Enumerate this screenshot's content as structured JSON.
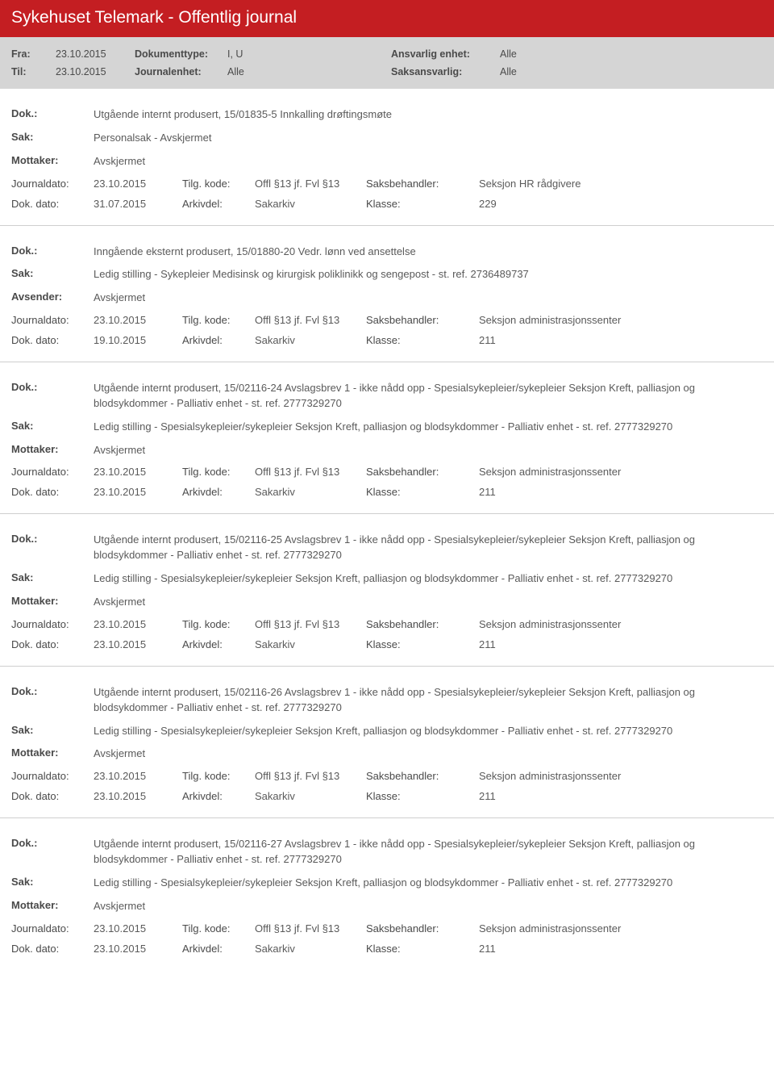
{
  "header": {
    "title": "Sykehuset Telemark - Offentlig journal"
  },
  "filter": {
    "row1": {
      "l1": "Fra:",
      "v1": "23.10.2015",
      "l2": "Dokumenttype:",
      "v2": "I, U",
      "l3": "Ansvarlig enhet:",
      "v3": "Alle"
    },
    "row2": {
      "l1": "Til:",
      "v1": "23.10.2015",
      "l2": "Journalenhet:",
      "v2": "Alle",
      "l3": "Saksansvarlig:",
      "v3": "Alle"
    }
  },
  "labels": {
    "dok": "Dok.:",
    "sak": "Sak:",
    "mottaker": "Mottaker:",
    "avsender": "Avsender:",
    "journaldato": "Journaldato:",
    "dokdato": "Dok. dato:",
    "tilgkode": "Tilg. kode:",
    "arkivdel": "Arkivdel:",
    "saksbehandler": "Saksbehandler:",
    "klasse": "Klasse:"
  },
  "entries": [
    {
      "dok": "Utgående internt produsert, 15/01835-5 Innkalling drøftingsmøte",
      "sak": "Personalsak - Avskjermet",
      "partyLabel": "Mottaker:",
      "party": "Avskjermet",
      "journaldato": "23.10.2015",
      "tilgkode": "Offl §13 jf. Fvl §13",
      "saksbehandler": "Seksjon HR rådgivere",
      "dokdato": "31.07.2015",
      "arkivdel": "Sakarkiv",
      "klasse": "229"
    },
    {
      "dok": "Inngående eksternt produsert, 15/01880-20 Vedr. lønn ved ansettelse",
      "sak": "Ledig stilling - Sykepleier Medisinsk og kirurgisk poliklinikk og sengepost - st. ref. 2736489737",
      "partyLabel": "Avsender:",
      "party": "Avskjermet",
      "journaldato": "23.10.2015",
      "tilgkode": "Offl §13 jf. Fvl §13",
      "saksbehandler": "Seksjon administrasjonssenter",
      "dokdato": "19.10.2015",
      "arkivdel": "Sakarkiv",
      "klasse": "211"
    },
    {
      "dok": "Utgående internt produsert, 15/02116-24 Avslagsbrev 1 - ikke nådd opp - Spesialsykepleier/sykepleier Seksjon Kreft, palliasjon og blodsykdommer - Palliativ enhet - st. ref. 2777329270",
      "sak": "Ledig stilling - Spesialsykepleier/sykepleier Seksjon Kreft, palliasjon og blodsykdommer - Palliativ enhet - st. ref. 2777329270",
      "partyLabel": "Mottaker:",
      "party": "Avskjermet",
      "journaldato": "23.10.2015",
      "tilgkode": "Offl §13 jf. Fvl §13",
      "saksbehandler": "Seksjon administrasjonssenter",
      "dokdato": "23.10.2015",
      "arkivdel": "Sakarkiv",
      "klasse": "211"
    },
    {
      "dok": "Utgående internt produsert, 15/02116-25 Avslagsbrev 1 - ikke nådd opp - Spesialsykepleier/sykepleier Seksjon Kreft, palliasjon og blodsykdommer - Palliativ enhet - st. ref. 2777329270",
      "sak": "Ledig stilling - Spesialsykepleier/sykepleier Seksjon Kreft, palliasjon og blodsykdommer - Palliativ enhet - st. ref. 2777329270",
      "partyLabel": "Mottaker:",
      "party": "Avskjermet",
      "journaldato": "23.10.2015",
      "tilgkode": "Offl §13 jf. Fvl §13",
      "saksbehandler": "Seksjon administrasjonssenter",
      "dokdato": "23.10.2015",
      "arkivdel": "Sakarkiv",
      "klasse": "211"
    },
    {
      "dok": "Utgående internt produsert, 15/02116-26 Avslagsbrev 1 - ikke nådd opp - Spesialsykepleier/sykepleier Seksjon Kreft, palliasjon og blodsykdommer - Palliativ enhet - st. ref. 2777329270",
      "sak": "Ledig stilling - Spesialsykepleier/sykepleier Seksjon Kreft, palliasjon og blodsykdommer - Palliativ enhet - st. ref. 2777329270",
      "partyLabel": "Mottaker:",
      "party": "Avskjermet",
      "journaldato": "23.10.2015",
      "tilgkode": "Offl §13 jf. Fvl §13",
      "saksbehandler": "Seksjon administrasjonssenter",
      "dokdato": "23.10.2015",
      "arkivdel": "Sakarkiv",
      "klasse": "211"
    },
    {
      "dok": "Utgående internt produsert, 15/02116-27 Avslagsbrev 1 - ikke nådd opp - Spesialsykepleier/sykepleier Seksjon Kreft, palliasjon og blodsykdommer - Palliativ enhet - st. ref. 2777329270",
      "sak": "Ledig stilling - Spesialsykepleier/sykepleier Seksjon Kreft, palliasjon og blodsykdommer - Palliativ enhet - st. ref. 2777329270",
      "partyLabel": "Mottaker:",
      "party": "Avskjermet",
      "journaldato": "23.10.2015",
      "tilgkode": "Offl §13 jf. Fvl §13",
      "saksbehandler": "Seksjon administrasjonssenter",
      "dokdato": "23.10.2015",
      "arkivdel": "Sakarkiv",
      "klasse": "211"
    }
  ]
}
